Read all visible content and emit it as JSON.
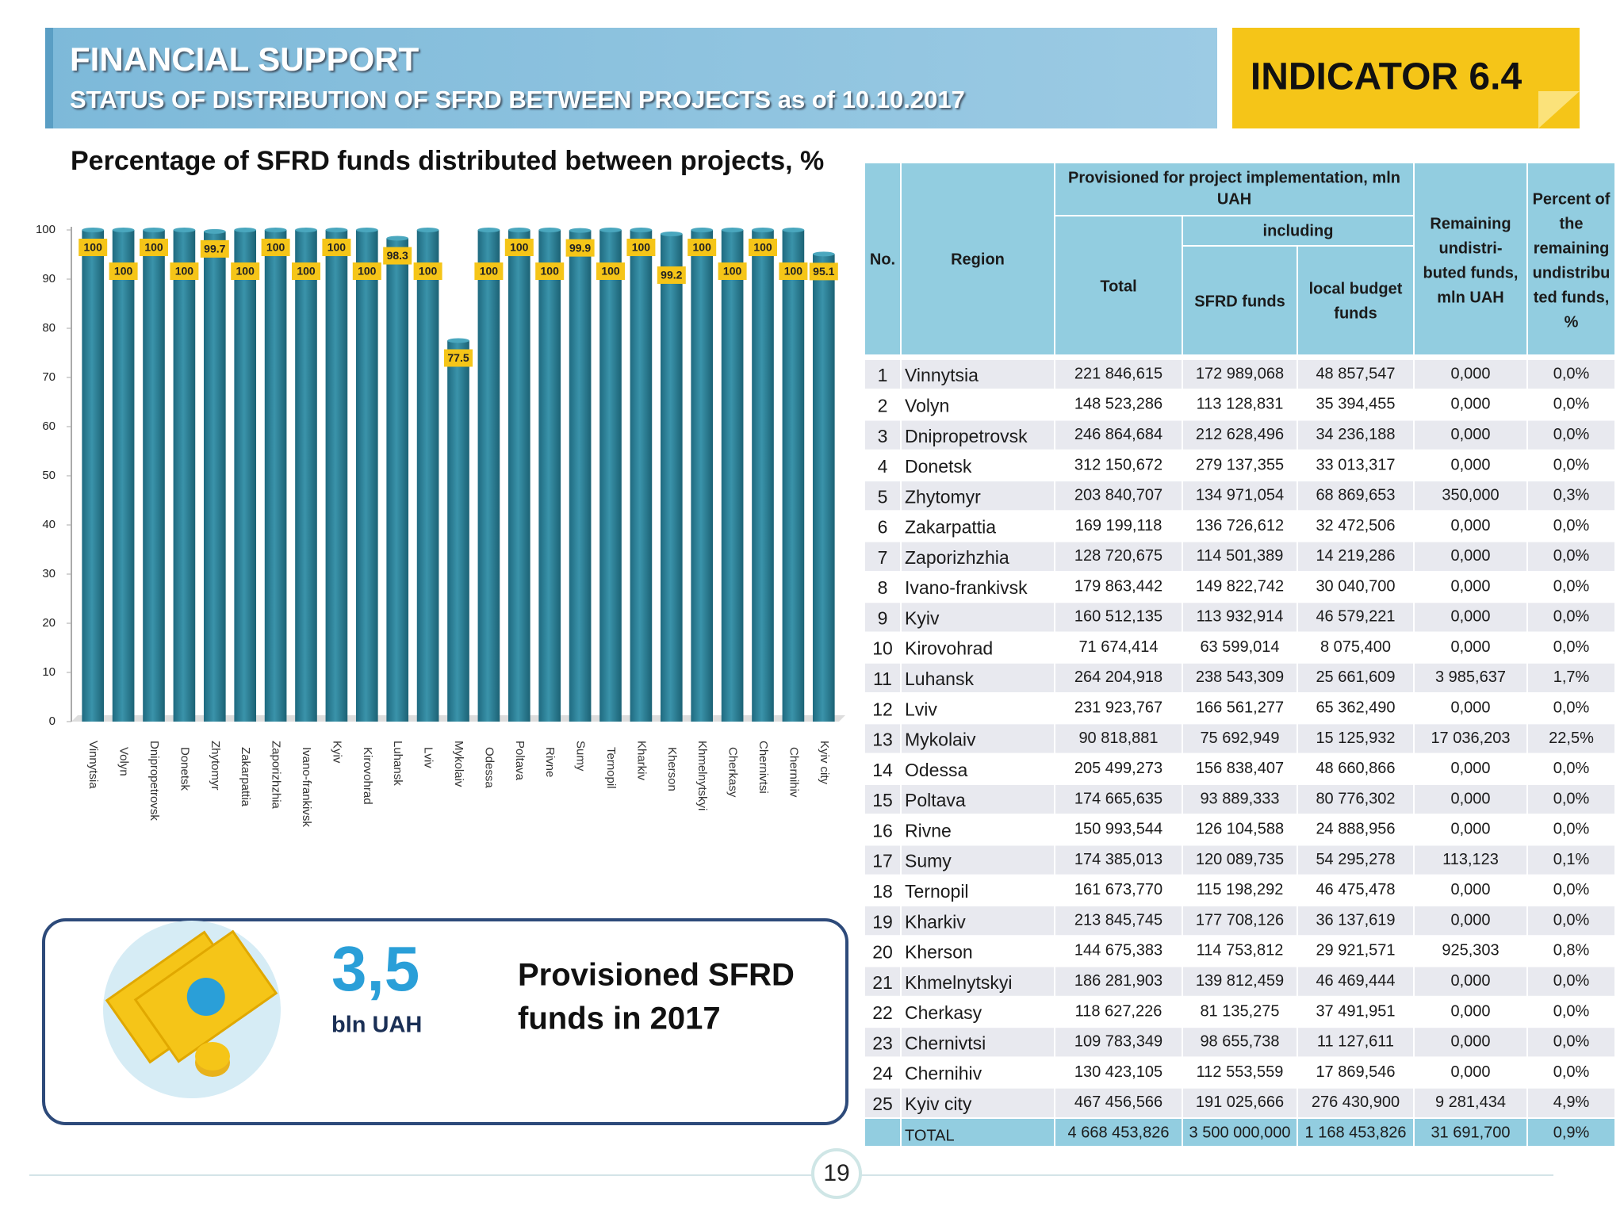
{
  "header": {
    "title": "FINANCIAL SUPPORT",
    "subtitle": "STATUS OF DISTRIBUTION OF SFRD BETWEEN PROJECTS as of 10.10.2017"
  },
  "indicator": "INDICATOR 6.4",
  "chart_data": {
    "type": "bar",
    "title": "Percentage of SFRD funds distributed between projects, %",
    "categories": [
      "Vinnytsia",
      "Volyn",
      "Dnipropetrovsk",
      "Donetsk",
      "Zhytomyr",
      "Zakarpattia",
      "Zaporizhzhia",
      "Ivano-frankivsk",
      "Kyiv",
      "Kirovohrad",
      "Luhansk",
      "Lviv",
      "Mykolaiv",
      "Odessa",
      "Poltava",
      "Rivne",
      "Sumy",
      "Ternopil",
      "Kharkiv",
      "Kherson",
      "Khmelnytskyi",
      "Cherkasy",
      "Chernivtsi",
      "Chernihiv",
      "Kyiv city"
    ],
    "values": [
      100,
      100,
      100,
      100,
      99.7,
      100,
      100,
      100,
      100,
      100,
      98.3,
      100,
      77.5,
      100,
      100,
      100,
      99.9,
      100,
      100,
      99.2,
      100,
      100,
      100,
      100,
      95.1
    ],
    "color": "#2a7f96",
    "label_color": "#f5c518",
    "ylim": [
      0,
      100
    ],
    "yticks": [
      0,
      10,
      20,
      30,
      40,
      50,
      60,
      70,
      80,
      90,
      100
    ],
    "grid": false
  },
  "table": {
    "header": {
      "no": "No.",
      "region": "Region",
      "provisioned": [
        "Provisioned for project implementation, mln",
        "UAH"
      ],
      "including": "including",
      "total": "Total",
      "sfrd": "SFRD funds",
      "local": [
        "local budget",
        "funds"
      ],
      "remaining": [
        "Remaining",
        "undistri-",
        "buted funds,",
        "mln UAH"
      ],
      "percent": [
        "Percent of",
        "the",
        "remaining",
        "undistribu",
        "ted funds,",
        "%"
      ]
    },
    "rows": [
      [
        "1",
        "Vinnytsia",
        "221 846,615",
        "172 989,068",
        "48 857,547",
        "0,000",
        "0,0%"
      ],
      [
        "2",
        "Volyn",
        "148 523,286",
        "113 128,831",
        "35 394,455",
        "0,000",
        "0,0%"
      ],
      [
        "3",
        "Dnipropetrovsk",
        "246 864,684",
        "212 628,496",
        "34 236,188",
        "0,000",
        "0,0%"
      ],
      [
        "4",
        "Donetsk",
        "312 150,672",
        "279 137,355",
        "33 013,317",
        "0,000",
        "0,0%"
      ],
      [
        "5",
        "Zhytomyr",
        "203 840,707",
        "134 971,054",
        "68 869,653",
        "350,000",
        "0,3%"
      ],
      [
        "6",
        "Zakarpattia",
        "169 199,118",
        "136 726,612",
        "32 472,506",
        "0,000",
        "0,0%"
      ],
      [
        "7",
        "Zaporizhzhia",
        "128 720,675",
        "114 501,389",
        "14 219,286",
        "0,000",
        "0,0%"
      ],
      [
        "8",
        "Ivano-frankivsk",
        "179 863,442",
        "149 822,742",
        "30 040,700",
        "0,000",
        "0,0%"
      ],
      [
        "9",
        "Kyiv",
        "160 512,135",
        "113 932,914",
        "46 579,221",
        "0,000",
        "0,0%"
      ],
      [
        "10",
        "Kirovohrad",
        "71 674,414",
        "63 599,014",
        "8 075,400",
        "0,000",
        "0,0%"
      ],
      [
        "11",
        "Luhansk",
        "264 204,918",
        "238 543,309",
        "25 661,609",
        "3 985,637",
        "1,7%"
      ],
      [
        "12",
        "Lviv",
        "231 923,767",
        "166 561,277",
        "65 362,490",
        "0,000",
        "0,0%"
      ],
      [
        "13",
        "Mykolaiv",
        "90 818,881",
        "75 692,949",
        "15 125,932",
        "17 036,203",
        "22,5%"
      ],
      [
        "14",
        "Odessa",
        "205 499,273",
        "156 838,407",
        "48 660,866",
        "0,000",
        "0,0%"
      ],
      [
        "15",
        "Poltava",
        "174 665,635",
        "93 889,333",
        "80 776,302",
        "0,000",
        "0,0%"
      ],
      [
        "16",
        "Rivne",
        "150 993,544",
        "126 104,588",
        "24 888,956",
        "0,000",
        "0,0%"
      ],
      [
        "17",
        "Sumy",
        "174 385,013",
        "120 089,735",
        "54 295,278",
        "113,123",
        "0,1%"
      ],
      [
        "18",
        "Ternopil",
        "161 673,770",
        "115 198,292",
        "46 475,478",
        "0,000",
        "0,0%"
      ],
      [
        "19",
        "Kharkiv",
        "213 845,745",
        "177 708,126",
        "36 137,619",
        "0,000",
        "0,0%"
      ],
      [
        "20",
        "Kherson",
        "144 675,383",
        "114 753,812",
        "29 921,571",
        "925,303",
        "0,8%"
      ],
      [
        "21",
        "Khmelnytskyi",
        "186 281,903",
        "139 812,459",
        "46 469,444",
        "0,000",
        "0,0%"
      ],
      [
        "22",
        "Cherkasy",
        "118 627,226",
        "81 135,275",
        "37 491,951",
        "0,000",
        "0,0%"
      ],
      [
        "23",
        "Chernivtsi",
        "109 783,349",
        "98 655,738",
        "11 127,611",
        "0,000",
        "0,0%"
      ],
      [
        "24",
        "Chernihiv",
        "130 423,105",
        "112 553,559",
        "17 869,546",
        "0,000",
        "0,0%"
      ],
      [
        "25",
        "Kyiv city",
        "467 456,566",
        "191 025,666",
        "276 430,900",
        "9 281,434",
        "4,9%"
      ]
    ],
    "total": {
      "label": "TOTAL",
      "cells": [
        "4 668 453,826",
        "3 500 000,000",
        "1 168 453,826",
        "31 691,700",
        "0,9%"
      ]
    }
  },
  "callout": {
    "value": "3,5",
    "unit": "bln UAH",
    "text": [
      "Provisioned SFRD",
      "funds in 2017"
    ]
  },
  "page_number": "19"
}
